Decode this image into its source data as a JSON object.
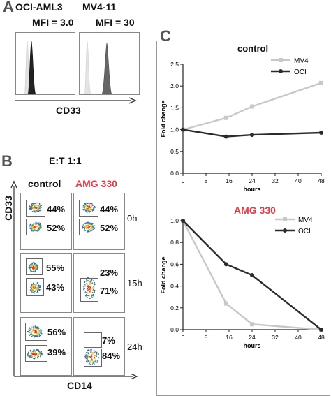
{
  "panelA": {
    "letter": "A",
    "label_left": "OCI-AML3",
    "label_right": "MV4-11",
    "mfi_left": "MFI = 3.0",
    "mfi_right": "MFI = 30",
    "axis_label": "CD33"
  },
  "panelB": {
    "letter": "B",
    "ratio": "E:T 1:1",
    "col_control": "control",
    "col_amg": "AMG 330",
    "y_axis": "CD33",
    "x_axis": "CD14",
    "rows": [
      {
        "time": "0h",
        "control": [
          "44%",
          "52%"
        ],
        "amg": [
          "44%",
          "52%"
        ]
      },
      {
        "time": "15h",
        "control": [
          "55%",
          "43%"
        ],
        "amg": [
          "23%",
          "71%"
        ]
      },
      {
        "time": "24h",
        "control": [
          "56%",
          "39%"
        ],
        "amg": [
          "7%",
          "84%"
        ]
      }
    ]
  },
  "panelC": {
    "letter": "C"
  },
  "colors": {
    "mv4": "#c8c8c8",
    "oci": "#2b2b2b",
    "amg_red": "#e33a4a"
  },
  "chart_data": [
    {
      "type": "line",
      "title": "control",
      "xlabel": "hours",
      "ylabel": "Fold change",
      "x_ticks": [
        0,
        8,
        16,
        24,
        32,
        40,
        48
      ],
      "y_ticks": [
        0,
        0.5,
        1.0,
        1.5,
        2.0,
        2.5
      ],
      "y_tick_labels": [
        "0.0",
        "0.5",
        "1.0",
        "1.5",
        "2.0",
        "2.5"
      ],
      "xlim": [
        0,
        48
      ],
      "ylim": [
        0,
        2.5
      ],
      "legend_position": "top-right",
      "series": [
        {
          "name": "MV4",
          "x": [
            0,
            15,
            24,
            48
          ],
          "y": [
            1.0,
            1.27,
            1.53,
            2.07
          ]
        },
        {
          "name": "OCI",
          "x": [
            0,
            15,
            24,
            48
          ],
          "y": [
            1.0,
            0.84,
            0.88,
            0.93
          ]
        }
      ]
    },
    {
      "type": "line",
      "title": "AMG 330",
      "xlabel": "hours",
      "ylabel": "Fold change",
      "x_ticks": [
        0,
        8,
        16,
        24,
        32,
        40,
        48
      ],
      "y_ticks": [
        0,
        0.2,
        0.4,
        0.6,
        0.8,
        1.0
      ],
      "y_tick_labels": [
        "0.0",
        "0.2",
        "0.4",
        "0.6",
        "0.8",
        "1.0"
      ],
      "xlim": [
        0,
        48
      ],
      "ylim": [
        0,
        1.0
      ],
      "legend_position": "top-right",
      "series": [
        {
          "name": "MV4",
          "x": [
            0,
            15,
            24,
            48
          ],
          "y": [
            1.0,
            0.24,
            0.05,
            0.0
          ]
        },
        {
          "name": "OCI",
          "x": [
            0,
            15,
            24,
            48
          ],
          "y": [
            1.0,
            0.6,
            0.5,
            0.0
          ]
        }
      ]
    }
  ]
}
